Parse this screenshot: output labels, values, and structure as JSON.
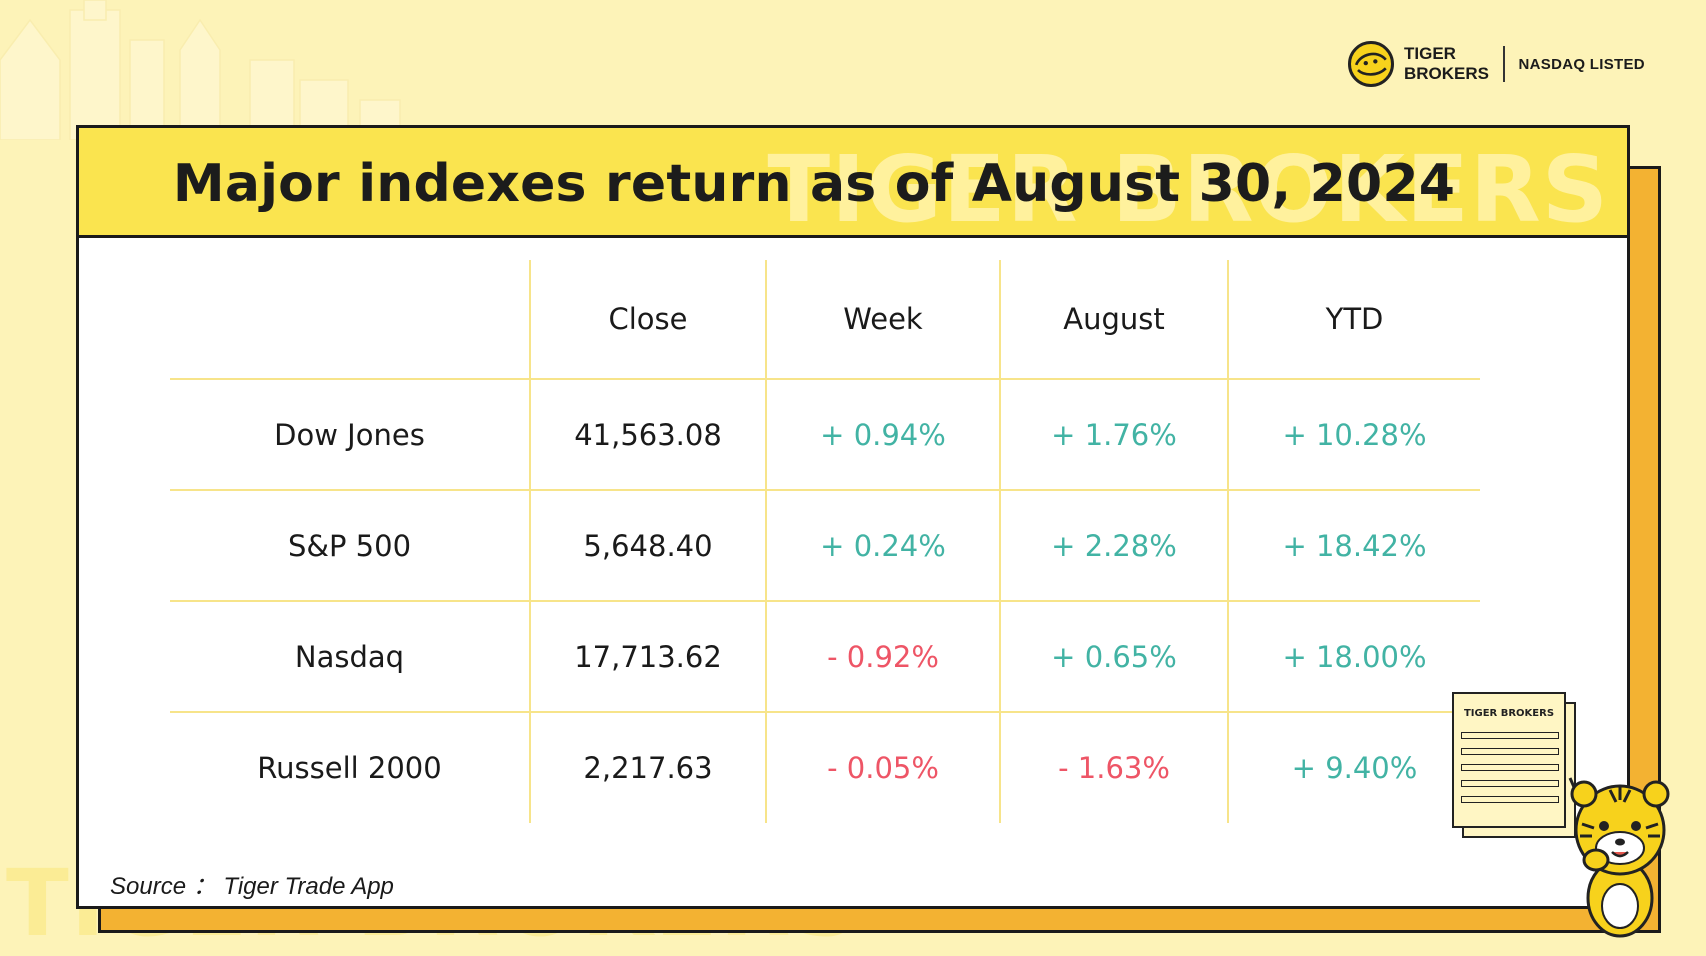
{
  "brand": {
    "name_line1": "TIGER",
    "name_line2": "BROKERS",
    "listed": "NASDAQ LISTED"
  },
  "watermark": {
    "header": "TIGER BROKERS",
    "bottom": "TIGER BROKERS"
  },
  "title": "Major indexes return as of August 30, 2024",
  "table": {
    "headers": [
      "",
      "Close",
      "Week",
      "August",
      "YTD"
    ],
    "rows": [
      {
        "index": "Dow Jones",
        "close": "41,563.08",
        "week": "+ 0.94%",
        "august": "+ 1.76%",
        "ytd": "+ 10.28%"
      },
      {
        "index": "S&P 500",
        "close": "5,648.40",
        "week": "+ 0.24%",
        "august": "+ 2.28%",
        "ytd": "+ 18.42%"
      },
      {
        "index": "Nasdaq",
        "close": "17,713.62",
        "week": "- 0.92%",
        "august": "+ 0.65%",
        "ytd": "+ 18.00%"
      },
      {
        "index": "Russell 2000",
        "close": "2,217.63",
        "week": "- 0.05%",
        "august": "- 1.63%",
        "ytd": "+ 9.40%"
      }
    ]
  },
  "source": "Source ： Tiger Trade App",
  "document_title": "TIGER BROKERS",
  "colors": {
    "positive": "#42b3a4",
    "negative": "#ee5566",
    "header_yellow": "#fae44f",
    "back_card_orange": "#f3b232",
    "background": "#fdf3b8"
  }
}
